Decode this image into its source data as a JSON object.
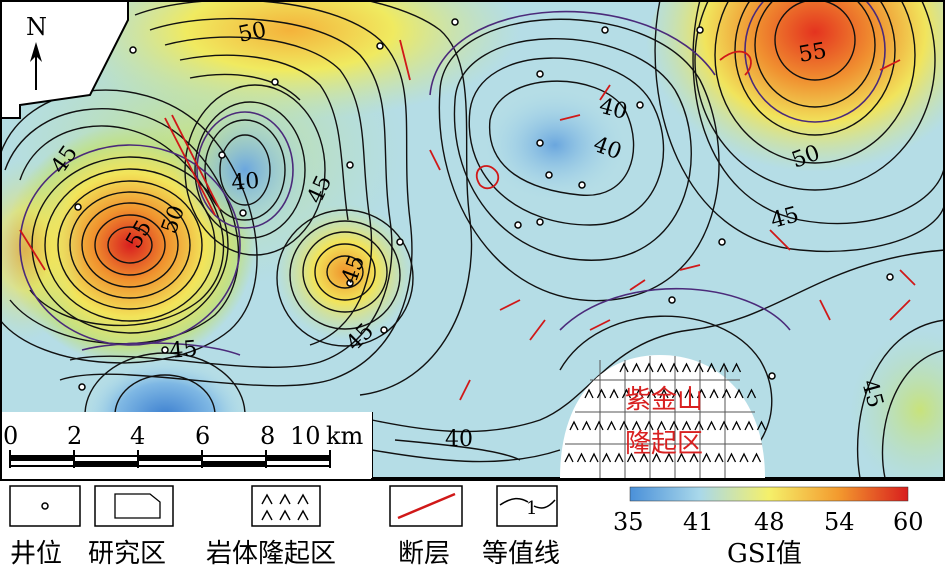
{
  "north_label": "N",
  "contour_labels": [
    {
      "text": "50",
      "v": 50
    },
    {
      "text": "55",
      "v": 55
    },
    {
      "text": "45",
      "v": 45
    },
    {
      "text": "40",
      "v": 40
    },
    {
      "text": "40",
      "v": 40
    },
    {
      "text": "45",
      "v": 45
    },
    {
      "text": "55",
      "v": 55
    },
    {
      "text": "50",
      "v": 50
    },
    {
      "text": "40",
      "v": 40
    },
    {
      "text": "50",
      "v": 50
    },
    {
      "text": "45",
      "v": 45
    },
    {
      "text": "45",
      "v": 45
    },
    {
      "text": "45",
      "v": 45
    },
    {
      "text": "40",
      "v": 40
    },
    {
      "text": "45",
      "v": 45
    }
  ],
  "uplift_name_line1": "紫金山",
  "uplift_name_line2": "隆起区",
  "scale_bar": {
    "ticks": [
      "0",
      "2",
      "4",
      "6",
      "8",
      "10"
    ],
    "unit": "km"
  },
  "legend": {
    "well": "井位",
    "study_area": "研究区",
    "rock_uplift": "岩体隆起区",
    "fault": "断层",
    "contour": "等值线",
    "contour_sample_value": "1"
  },
  "colorbar": {
    "ticks": [
      "35",
      "41",
      "48",
      "54",
      "60"
    ],
    "title": "GSI值",
    "colors": [
      "#4a90d9",
      "#a9d8ea",
      "#f5f06a",
      "#f39a2e",
      "#d81e1e"
    ]
  }
}
